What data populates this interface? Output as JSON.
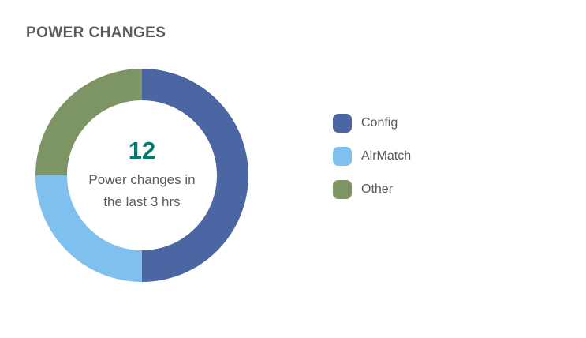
{
  "widget": {
    "title": "POWER CHANGES",
    "center": {
      "value": "12",
      "caption_lines": [
        "Power changes in",
        "the last 3 hrs"
      ]
    }
  },
  "legend": {
    "items": [
      {
        "label": "Config",
        "color": "#4C66A3"
      },
      {
        "label": "AirMatch",
        "color": "#7FC0EE"
      },
      {
        "label": "Other",
        "color": "#7D9464"
      }
    ]
  },
  "chart_data": {
    "type": "pie",
    "subtype": "donut",
    "title": "POWER CHANGES",
    "categories": [
      "Config",
      "AirMatch",
      "Other"
    ],
    "values": [
      6,
      3,
      3
    ],
    "total": 12,
    "colors": [
      "#4C66A3",
      "#7FC0EE",
      "#7D9464"
    ],
    "start_angle_deg": 0,
    "direction": "clockwise",
    "inner_radius_ratio": 0.7,
    "legend_position": "right",
    "center_label": "12",
    "center_caption": "Power changes in the last 3 hrs"
  },
  "colors": {
    "title_text": "#58595B",
    "body_text": "#5A5B5D",
    "center_value": "#007D6E",
    "background": "#FFFFFF"
  }
}
